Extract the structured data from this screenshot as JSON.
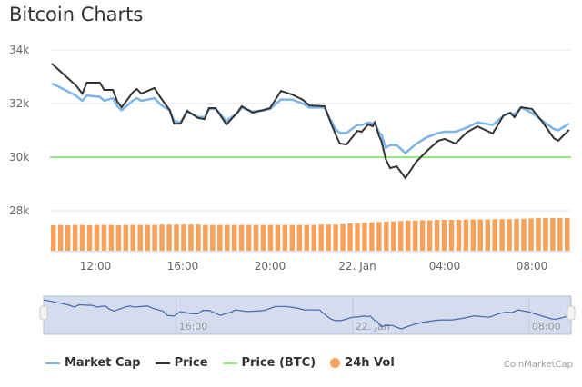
{
  "chart_data": {
    "type": "line",
    "title": "Bitcoin Charts",
    "credit": "CoinMarketCap",
    "y_ticks": [
      "34k",
      "32k",
      "30k",
      "28k"
    ],
    "y_tick_values": [
      34000,
      32000,
      30000,
      28000
    ],
    "x_ticks": [
      "12:00",
      "16:00",
      "20:00",
      "22. Jan",
      "04:00",
      "08:00"
    ],
    "navigator_ticks": [
      "16:00",
      "22. Jan",
      "08:00"
    ],
    "grid": true,
    "legend_position": "bottom",
    "colors": {
      "market_cap": "#7cb5ec",
      "price": "#333333",
      "price_btc": "#90ed7d",
      "volume": "#f7a35c",
      "navigator_bg": "#d5dcee",
      "navigator_line": "#4d6fb0"
    },
    "times": [
      "21 Jan 10:00",
      "21 Jan 10:30",
      "21 Jan 11:06",
      "21 Jan 11:24",
      "21 Jan 11:36",
      "21 Jan 12:12",
      "21 Jan 12:24",
      "21 Jan 12:48",
      "21 Jan 13:00",
      "21 Jan 13:12",
      "21 Jan 13:42",
      "21 Jan 13:54",
      "21 Jan 14:06",
      "21 Jan 14:42",
      "21 Jan 15:00",
      "21 Jan 15:24",
      "21 Jan 15:36",
      "21 Jan 15:54",
      "21 Jan 16:12",
      "21 Jan 16:42",
      "21 Jan 17:00",
      "21 Jan 17:12",
      "21 Jan 17:30",
      "21 Jan 18:00",
      "21 Jan 18:30",
      "21 Jan 18:42",
      "21 Jan 19:12",
      "21 Jan 19:42",
      "21 Jan 20:00",
      "21 Jan 20:30",
      "21 Jan 21:00",
      "21 Jan 21:30",
      "21 Jan 21:48",
      "21 Jan 22:30",
      "21 Jan 22:42",
      "21 Jan 23:00",
      "21 Jan 23:12",
      "21 Jan 23:30",
      "22 Jan 00:00",
      "22 Jan 00:12",
      "22 Jan 00:30",
      "22 Jan 00:42",
      "22 Jan 00:48",
      "22 Jan 01:00",
      "22 Jan 01:06",
      "22 Jan 01:18",
      "22 Jan 01:30",
      "22 Jan 01:48",
      "22 Jan 02:12",
      "22 Jan 02:42",
      "22 Jan 03:12",
      "22 Jan 03:42",
      "22 Jan 04:00",
      "22 Jan 04:30",
      "22 Jan 05:00",
      "22 Jan 05:30",
      "22 Jan 06:12",
      "22 Jan 06:42",
      "22 Jan 07:00",
      "22 Jan 07:12",
      "22 Jan 07:30",
      "22 Jan 08:00",
      "22 Jan 08:30",
      "22 Jan 09:00",
      "22 Jan 09:12",
      "22 Jan 09:42"
    ],
    "series": [
      {
        "name": "Market Cap",
        "values": [
          32750,
          32550,
          32300,
          32100,
          32300,
          32250,
          32100,
          32200,
          31900,
          31750,
          32100,
          32200,
          32100,
          32200,
          31950,
          31750,
          31350,
          31300,
          31700,
          31500,
          31500,
          31800,
          31800,
          31350,
          31650,
          31850,
          31700,
          31750,
          31800,
          32150,
          32150,
          32000,
          31850,
          31850,
          31500,
          31050,
          30900,
          30900,
          31200,
          31200,
          31300,
          31250,
          31300,
          30900,
          30850,
          30350,
          30450,
          30450,
          30150,
          30500,
          30750,
          30900,
          30950,
          30950,
          31100,
          31300,
          31200,
          31550,
          31650,
          31600,
          31850,
          31650,
          31350,
          31050,
          31000,
          31250
        ]
      },
      {
        "name": "Price",
        "values": [
          33490,
          33120,
          32680,
          32370,
          32780,
          32780,
          32510,
          32510,
          32070,
          31860,
          32410,
          32540,
          32370,
          32580,
          32200,
          31760,
          31250,
          31250,
          31730,
          31460,
          31420,
          31830,
          31830,
          31220,
          31660,
          31900,
          31660,
          31760,
          31830,
          32470,
          32340,
          32140,
          31930,
          31900,
          31460,
          30850,
          30510,
          30470,
          30980,
          30950,
          31220,
          31150,
          31290,
          30780,
          30610,
          29930,
          29590,
          29660,
          29220,
          29830,
          30240,
          30610,
          30680,
          30510,
          30920,
          31150,
          30880,
          31560,
          31660,
          31490,
          31860,
          31800,
          31290,
          30710,
          30610,
          31020
        ]
      },
      {
        "name": "Price (BTC)",
        "values": [
          1,
          1
        ]
      },
      {
        "name": "24h Vol",
        "relative_values": [
          0.7,
          0.71,
          0.7,
          0.71,
          0.71,
          0.7,
          0.71,
          0.71,
          0.71,
          0.7,
          0.71,
          0.71,
          0.71,
          0.71,
          0.71,
          0.72,
          0.72,
          0.72,
          0.72,
          0.72,
          0.72,
          0.71,
          0.71,
          0.71,
          0.71,
          0.71,
          0.71,
          0.71,
          0.71,
          0.71,
          0.71,
          0.71,
          0.71,
          0.71,
          0.71,
          0.71,
          0.71,
          0.72,
          0.72,
          0.72,
          0.73,
          0.75,
          0.76,
          0.77,
          0.78,
          0.79,
          0.8,
          0.81,
          0.82,
          0.83,
          0.83,
          0.84,
          0.84,
          0.85,
          0.85,
          0.85,
          0.85,
          0.86,
          0.86,
          0.86,
          0.86,
          0.87,
          0.87,
          0.87,
          0.88,
          0.88,
          0.89,
          0.9,
          0.9,
          0.9,
          0.9,
          0.9
        ]
      }
    ]
  },
  "legend": [
    "Market Cap",
    "Price",
    "Price (BTC)",
    "24h Vol"
  ]
}
